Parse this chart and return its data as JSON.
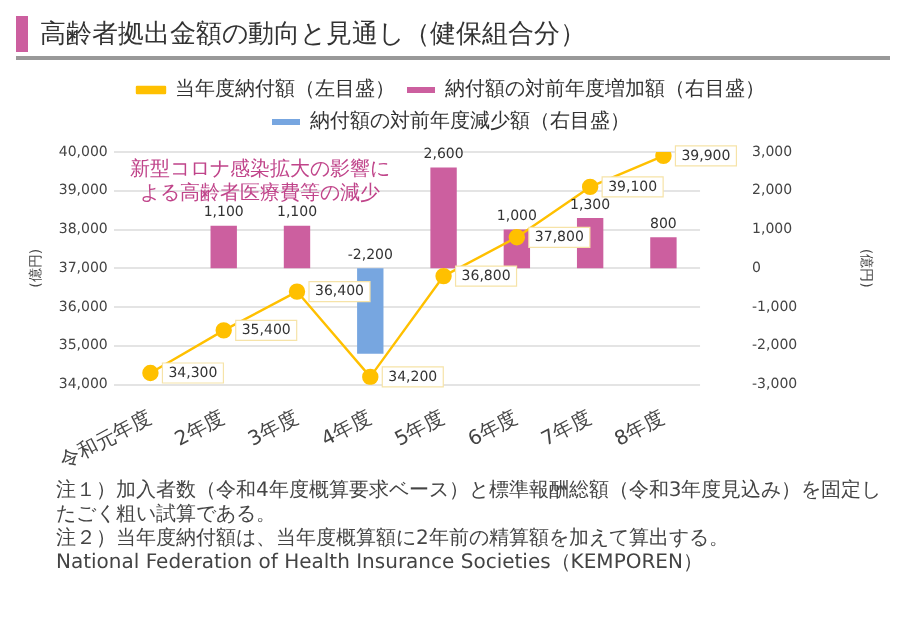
{
  "chart_data": {
    "type": "bar",
    "title": "高齢者拠出金額の動向と見通し（健保組合分）",
    "categories": [
      "令和元年度",
      "2年度",
      "3年度",
      "4年度",
      "5年度",
      "6年度",
      "7年度",
      "8年度"
    ],
    "series": [
      {
        "name": "納付額の対前年度増加額（右目盛）",
        "axis": "y2",
        "color": "#cc5f9f",
        "values": [
          null,
          1100,
          1100,
          null,
          2600,
          1000,
          1300,
          800
        ],
        "value_labels": [
          null,
          "1,100",
          "1,100",
          null,
          "2,600",
          "1,000",
          "1,300",
          "800"
        ]
      },
      {
        "name": "納付額の対前年度減少額（右目盛）",
        "axis": "y2",
        "color": "#77a6e0",
        "values": [
          null,
          null,
          null,
          -2200,
          null,
          null,
          null,
          null
        ],
        "value_labels": [
          null,
          null,
          null,
          "-2,200",
          null,
          null,
          null,
          null
        ]
      },
      {
        "name": "当年度納付額（左目盛）",
        "type": "line",
        "color": "#ffc000",
        "values": [
          34300,
          35400,
          36400,
          34200,
          36800,
          37800,
          39100,
          39900
        ],
        "value_labels": [
          "34,300",
          "35,400",
          "36,400",
          "34,200",
          "36,800",
          "37,800",
          "39,100",
          "39,900"
        ]
      }
    ],
    "ylabel": "(億円)",
    "y2label": "(億円)",
    "ylim": [
      34000,
      40000
    ],
    "yticks": [
      {
        "value": 34000,
        "label": "34,000"
      },
      {
        "value": 35000,
        "label": "35,000"
      },
      {
        "value": 36000,
        "label": "36,000"
      },
      {
        "value": 37000,
        "label": "37,000"
      },
      {
        "value": 38000,
        "label": "38,000"
      },
      {
        "value": 39000,
        "label": "39,000"
      },
      {
        "value": 40000,
        "label": "40,000"
      }
    ],
    "y2lim": [
      -3000,
      3000
    ],
    "y2ticks": [
      {
        "value": -3000,
        "label": "-3,000"
      },
      {
        "value": -2000,
        "label": "-2,000"
      },
      {
        "value": -1000,
        "label": "-1,000"
      },
      0,
      {
        "value": 1000,
        "label": "1,000"
      },
      {
        "value": 2000,
        "label": "2,000"
      },
      {
        "value": 3000,
        "label": "3,000"
      }
    ],
    "grid": "y",
    "legend": "top",
    "marker": "circle",
    "annotations": [
      "新型コロナ感染拡大の影響による高齢者医療費等の減少",
      "注１）加入者数（令和4年度概算要求ベース）と標準報酬総額（令和3年度見込み）を固定したごく粗い試算である。",
      "注２）当年度納付額は、当年度概算額に2年前の精算額を加えて算出する。",
      "National Federation of Health Insurance Societies（KEMPOREN）"
    ]
  }
}
